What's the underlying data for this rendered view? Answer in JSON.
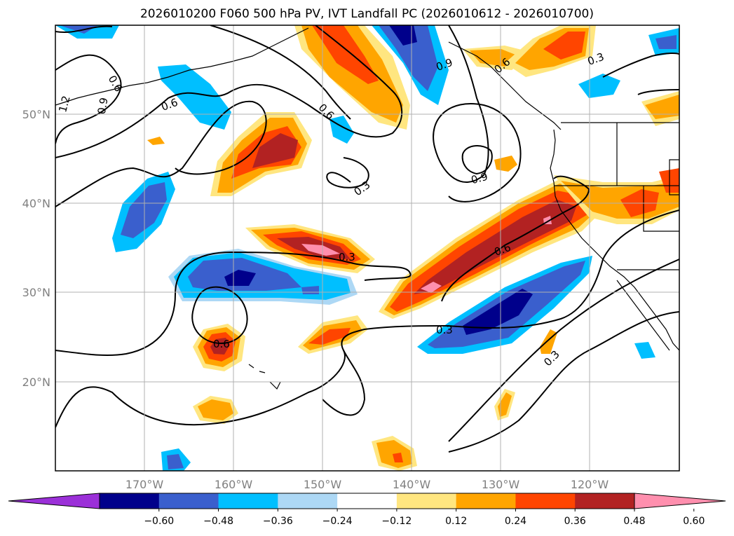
{
  "title": "2026010200 F060 500 hPa PV, IVT Landfall PC (2026010612 - 2026010700)",
  "map": {
    "projection": "equirectangular",
    "lon_range": [
      -180,
      -110
    ],
    "lat_range": [
      10,
      60
    ],
    "grid": true,
    "lon_ticks": [
      "170°W",
      "160°W",
      "150°W",
      "140°W",
      "130°W",
      "120°W"
    ],
    "lat_ticks": [
      "50°N",
      "40°N",
      "30°N",
      "20°N"
    ],
    "contour_labels": [
      "0.6",
      "1.2",
      "0.9",
      "0.6",
      "0.6",
      "0.9",
      "0.6",
      "0.3",
      "0.3",
      "0.9",
      "0.3",
      "0.6",
      "0.3",
      "0.6",
      "0.3"
    ]
  },
  "colorbar": {
    "extend": "both",
    "tick_labels": [
      "−0.60",
      "−0.48",
      "−0.36",
      "−0.24",
      "−0.12",
      "0.12",
      "0.24",
      "0.36",
      "0.48",
      "0.60"
    ],
    "colors": [
      "#9b30d8",
      "#00008b",
      "#3a5fcd",
      "#00bfff",
      "#add8f5",
      "#ffffff",
      "#ffe680",
      "#ffa500",
      "#ff4500",
      "#b22222",
      "#ff8fae"
    ]
  }
}
